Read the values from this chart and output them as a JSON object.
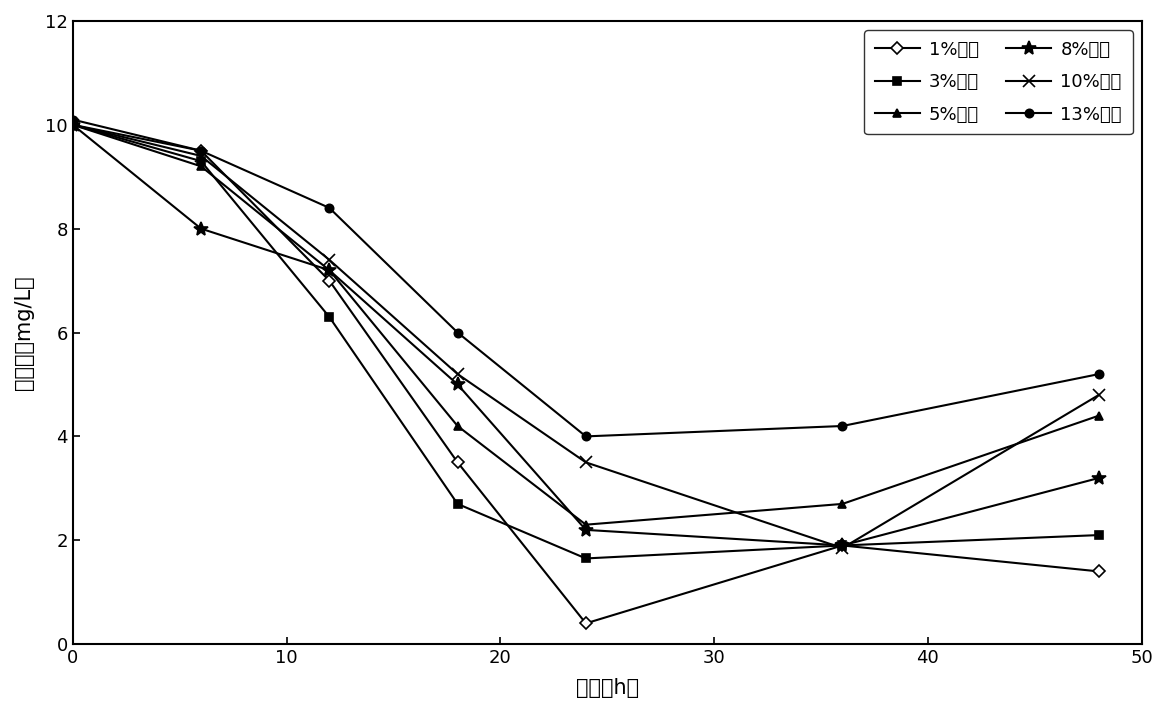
{
  "title": "",
  "xlabel": "时间（h）",
  "ylabel": "碗酸盐（mg/L）",
  "xlim": [
    0,
    50
  ],
  "ylim": [
    0,
    12
  ],
  "xticks": [
    0,
    10,
    20,
    30,
    40,
    50
  ],
  "yticks": [
    0,
    2,
    4,
    6,
    8,
    10,
    12
  ],
  "series": [
    {
      "label": "1%盐度",
      "x": [
        0,
        6,
        12,
        18,
        24,
        36,
        48
      ],
      "y": [
        10.0,
        9.5,
        7.0,
        3.5,
        0.4,
        1.9,
        1.4
      ],
      "marker": "D",
      "markersize": 6,
      "markerfacecolor": "white",
      "color": "black",
      "linestyle": "-"
    },
    {
      "label": "3%盐度",
      "x": [
        0,
        6,
        12,
        18,
        24,
        36,
        48
      ],
      "y": [
        10.0,
        9.3,
        6.3,
        2.7,
        1.65,
        1.9,
        2.1
      ],
      "marker": "s",
      "markersize": 6,
      "markerfacecolor": "black",
      "color": "black",
      "linestyle": "-"
    },
    {
      "label": "5%盐度",
      "x": [
        0,
        6,
        12,
        18,
        24,
        36,
        48
      ],
      "y": [
        10.0,
        9.2,
        7.2,
        4.2,
        2.3,
        2.7,
        4.4
      ],
      "marker": "^",
      "markersize": 6,
      "markerfacecolor": "black",
      "color": "black",
      "linestyle": "-"
    },
    {
      "label": "8%盐度",
      "x": [
        0,
        6,
        12,
        18,
        24,
        36,
        48
      ],
      "y": [
        10.0,
        8.0,
        7.2,
        5.0,
        2.2,
        1.9,
        3.2
      ],
      "marker": "*",
      "markersize": 10,
      "markerfacecolor": "black",
      "color": "black",
      "linestyle": "-"
    },
    {
      "label": "10%盐度",
      "x": [
        0,
        6,
        12,
        18,
        24,
        36,
        48
      ],
      "y": [
        10.0,
        9.4,
        7.4,
        5.2,
        3.5,
        1.85,
        4.8
      ],
      "marker": "x",
      "markersize": 8,
      "markerfacecolor": "black",
      "color": "black",
      "linestyle": "-"
    },
    {
      "label": "13%盐度",
      "x": [
        0,
        6,
        12,
        18,
        24,
        36,
        48
      ],
      "y": [
        10.1,
        9.5,
        8.4,
        6.0,
        4.0,
        4.2,
        5.2
      ],
      "marker": "o",
      "markersize": 6,
      "markerfacecolor": "black",
      "color": "black",
      "linestyle": "-"
    }
  ],
  "legend_ncol": 2,
  "legend_loc": "upper right",
  "figsize": [
    11.67,
    7.12
  ],
  "dpi": 100
}
